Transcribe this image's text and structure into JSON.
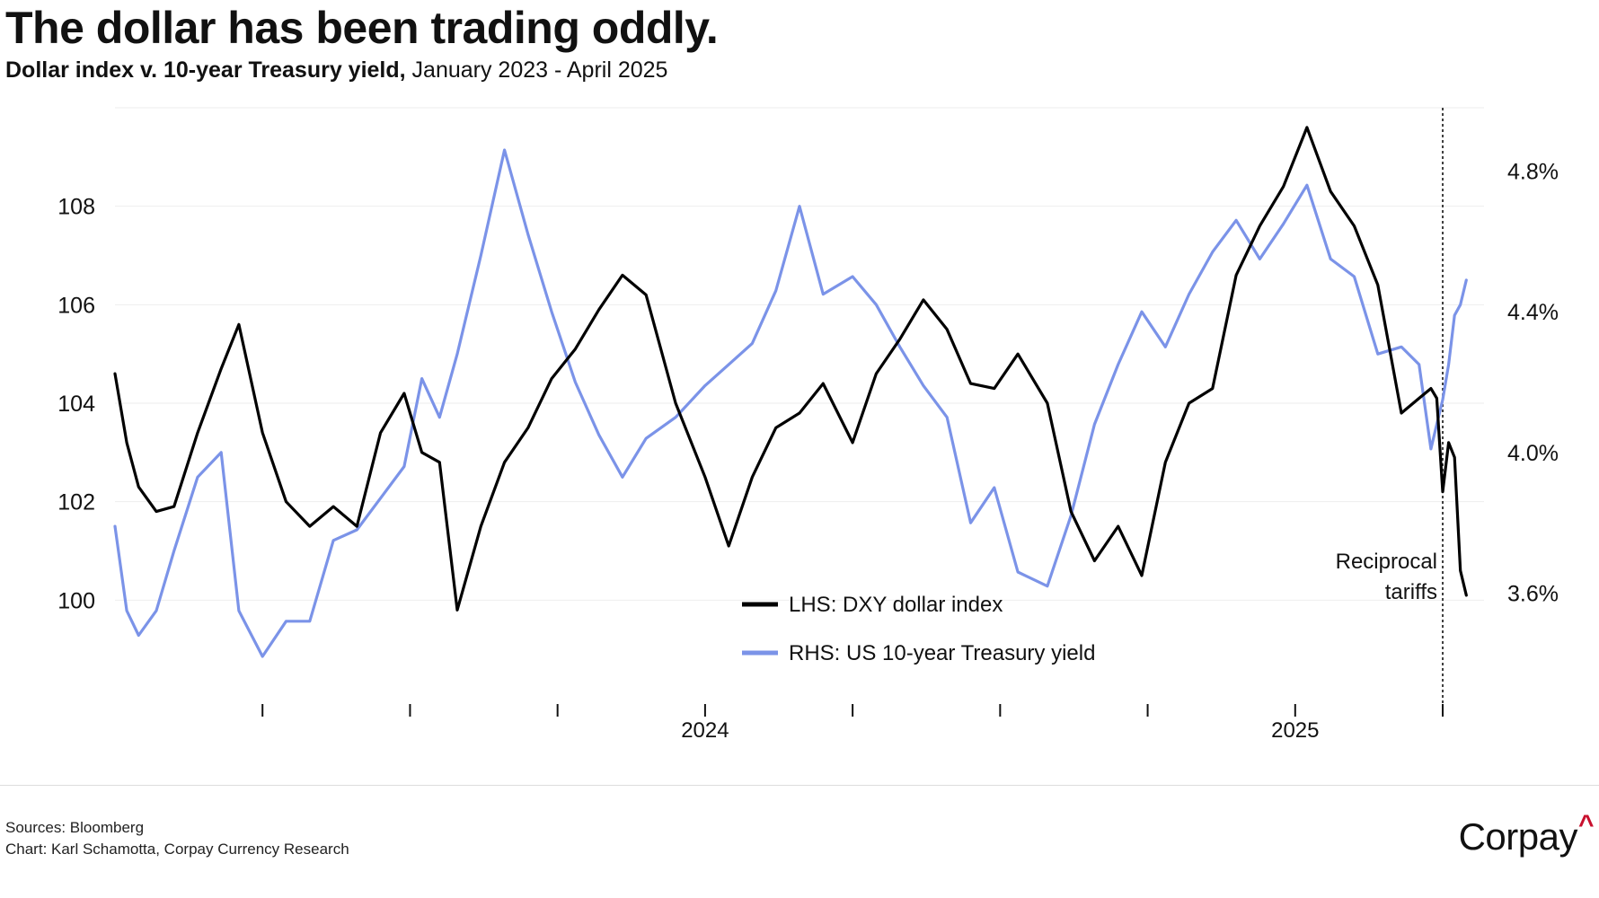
{
  "header": {
    "title": "The dollar has been trading oddly.",
    "subtitle_bold": "Dollar index v. 10-year Treasury yield,",
    "subtitle_light": "January 2023 - April 2025"
  },
  "footer": {
    "sources": "Sources: Bloomberg",
    "credit": "Chart: Karl Schamotta, Corpay Currency Research",
    "logo_text": "Corpay",
    "logo_mark": "^"
  },
  "colors": {
    "dxy": "#000000",
    "yield": "#7b93e8",
    "grid": "#eeeeee",
    "brand_accent": "#c8102e"
  },
  "chart_data": {
    "type": "line",
    "title": "The dollar has been trading oddly.",
    "subtitle": "Dollar index v. 10-year Treasury yield, January 2023 - April 2025",
    "x_range": [
      2023.0,
      2025.32
    ],
    "x_ticks": [
      2023.25,
      2023.5,
      2023.75,
      2024.0,
      2024.25,
      2024.5,
      2024.75,
      2025.0,
      2025.25
    ],
    "x_tick_labels": [
      {
        "value": 2024.0,
        "label": "2024"
      },
      {
        "value": 2025.0,
        "label": "2025"
      }
    ],
    "left_axis": {
      "label": "",
      "ylim": [
        98.0,
        110.0
      ],
      "ticks": [
        100,
        102,
        104,
        106,
        108
      ],
      "tick_labels": [
        "100",
        "102",
        "104",
        "106",
        "108"
      ]
    },
    "right_axis": {
      "label": "",
      "ylim": [
        3.3,
        4.98
      ],
      "ticks": [
        3.6,
        4.0,
        4.4,
        4.8
      ],
      "tick_labels": [
        "3.6%",
        "4.0%",
        "4.4%",
        "4.8%"
      ]
    },
    "legend_position": "bottom-center",
    "series": [
      {
        "name": "LHS: DXY dollar index",
        "axis": "left",
        "x": [
          2023.0,
          2023.02,
          2023.04,
          2023.07,
          2023.1,
          2023.14,
          2023.18,
          2023.21,
          2023.25,
          2023.29,
          2023.33,
          2023.37,
          2023.41,
          2023.45,
          2023.49,
          2023.52,
          2023.55,
          2023.58,
          2023.62,
          2023.66,
          2023.7,
          2023.74,
          2023.78,
          2023.82,
          2023.86,
          2023.9,
          2023.95,
          2024.0,
          2024.04,
          2024.08,
          2024.12,
          2024.16,
          2024.2,
          2024.25,
          2024.29,
          2024.33,
          2024.37,
          2024.41,
          2024.45,
          2024.49,
          2024.53,
          2024.58,
          2024.62,
          2024.66,
          2024.7,
          2024.74,
          2024.78,
          2024.82,
          2024.86,
          2024.9,
          2024.94,
          2024.98,
          2025.02,
          2025.06,
          2025.1,
          2025.14,
          2025.18,
          2025.21,
          2025.23,
          2025.24,
          2025.25,
          2025.26,
          2025.27,
          2025.28,
          2025.29
        ],
        "values": [
          104.6,
          103.2,
          102.3,
          101.8,
          101.9,
          103.4,
          104.7,
          105.6,
          103.4,
          102.0,
          101.5,
          101.9,
          101.5,
          103.4,
          104.2,
          103.0,
          102.8,
          99.8,
          101.5,
          102.8,
          103.5,
          104.5,
          105.1,
          105.9,
          106.6,
          106.2,
          104.0,
          102.5,
          101.1,
          102.5,
          103.5,
          103.8,
          104.4,
          103.2,
          104.6,
          105.3,
          106.1,
          105.5,
          104.4,
          104.3,
          105.0,
          104.0,
          101.8,
          100.8,
          101.5,
          100.5,
          102.8,
          104.0,
          104.3,
          106.6,
          107.6,
          108.4,
          109.6,
          108.3,
          107.6,
          106.4,
          103.8,
          104.1,
          104.3,
          104.1,
          102.2,
          103.2,
          102.9,
          100.6,
          100.1
        ]
      },
      {
        "name": "RHS: US 10-year Treasury yield",
        "axis": "right",
        "x": [
          2023.0,
          2023.02,
          2023.04,
          2023.07,
          2023.1,
          2023.14,
          2023.18,
          2023.21,
          2023.25,
          2023.29,
          2023.33,
          2023.37,
          2023.41,
          2023.45,
          2023.49,
          2023.52,
          2023.55,
          2023.58,
          2023.62,
          2023.66,
          2023.7,
          2023.74,
          2023.78,
          2023.82,
          2023.86,
          2023.9,
          2023.95,
          2024.0,
          2024.04,
          2024.08,
          2024.12,
          2024.16,
          2024.2,
          2024.25,
          2024.29,
          2024.33,
          2024.37,
          2024.41,
          2024.45,
          2024.49,
          2024.53,
          2024.58,
          2024.62,
          2024.66,
          2024.7,
          2024.74,
          2024.78,
          2024.82,
          2024.86,
          2024.9,
          2024.94,
          2024.98,
          2025.02,
          2025.06,
          2025.1,
          2025.14,
          2025.18,
          2025.21,
          2025.23,
          2025.24,
          2025.25,
          2025.26,
          2025.27,
          2025.28,
          2025.29
        ],
        "values": [
          3.79,
          3.55,
          3.48,
          3.55,
          3.72,
          3.93,
          4.0,
          3.55,
          3.42,
          3.52,
          3.52,
          3.75,
          3.78,
          3.87,
          3.96,
          4.21,
          4.1,
          4.28,
          4.56,
          4.86,
          4.62,
          4.4,
          4.2,
          4.05,
          3.93,
          4.04,
          4.1,
          4.19,
          4.25,
          4.31,
          4.46,
          4.7,
          4.45,
          4.5,
          4.42,
          4.3,
          4.19,
          4.1,
          3.8,
          3.9,
          3.66,
          3.62,
          3.82,
          4.08,
          4.25,
          4.4,
          4.3,
          4.45,
          4.57,
          4.66,
          4.55,
          4.65,
          4.76,
          4.55,
          4.5,
          4.28,
          4.3,
          4.25,
          4.01,
          4.08,
          4.15,
          4.25,
          4.39,
          4.42,
          4.49
        ]
      }
    ],
    "annotations": [
      {
        "x": 2025.25,
        "text_line1": "Reciprocal",
        "text_line2": "tariffs",
        "style": "dashed-vertical-line"
      }
    ]
  }
}
